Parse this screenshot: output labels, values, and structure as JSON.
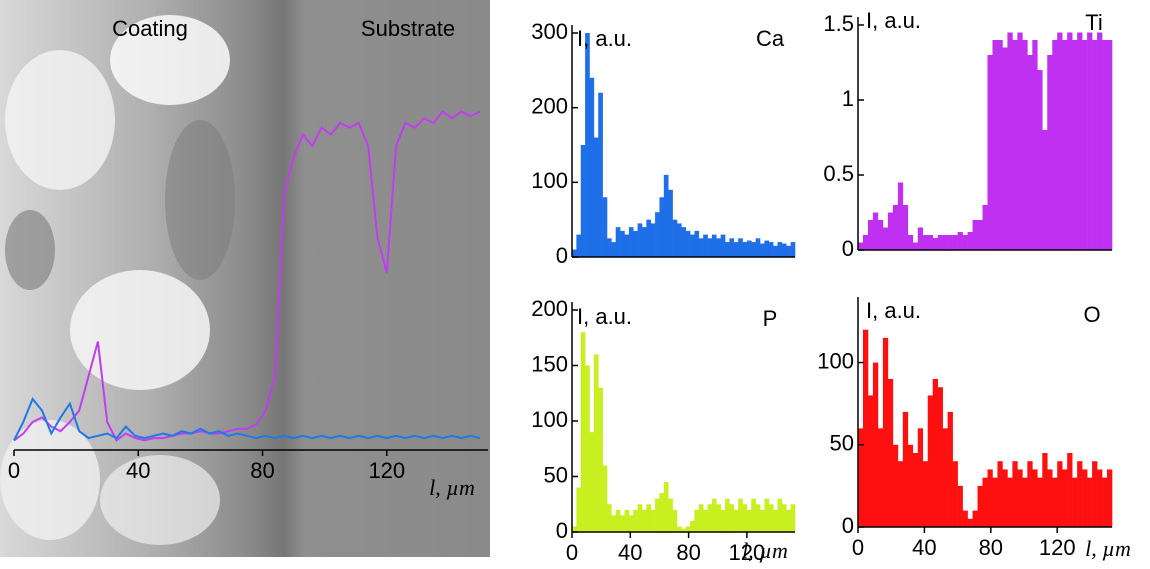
{
  "chart_data": [
    {
      "type": "line",
      "annotations": [
        "Coating",
        "Substrate"
      ],
      "xlabel": "l, µm",
      "x": [
        0,
        3,
        6,
        9,
        12,
        15,
        18,
        21,
        24,
        27,
        30,
        33,
        36,
        39,
        42,
        45,
        48,
        51,
        54,
        57,
        60,
        63,
        66,
        69,
        72,
        75,
        78,
        81,
        84,
        87,
        90,
        93,
        96,
        99,
        102,
        105,
        108,
        111,
        114,
        117,
        120,
        123,
        126,
        129,
        132,
        135,
        138,
        141,
        144,
        147,
        150
      ],
      "series": [
        {
          "color": "#c23cf2",
          "values": [
            0.02,
            0.05,
            0.1,
            0.12,
            0.08,
            0.06,
            0.1,
            0.15,
            0.3,
            0.45,
            0.1,
            0.02,
            0.05,
            0.03,
            0.02,
            0.03,
            0.03,
            0.04,
            0.05,
            0.05,
            0.06,
            0.05,
            0.05,
            0.06,
            0.07,
            0.07,
            0.09,
            0.15,
            0.3,
            1.1,
            1.25,
            1.35,
            1.3,
            1.38,
            1.35,
            1.4,
            1.38,
            1.4,
            1.3,
            0.9,
            0.75,
            1.3,
            1.4,
            1.38,
            1.42,
            1.4,
            1.45,
            1.42,
            1.45,
            1.43,
            1.45
          ]
        },
        {
          "color": "#1f78e8",
          "values": [
            0.02,
            0.1,
            0.2,
            0.15,
            0.05,
            0.12,
            0.18,
            0.06,
            0.03,
            0.04,
            0.05,
            0.03,
            0.08,
            0.04,
            0.03,
            0.04,
            0.05,
            0.04,
            0.06,
            0.05,
            0.07,
            0.05,
            0.06,
            0.04,
            0.05,
            0.04,
            0.03,
            0.04,
            0.03,
            0.04,
            0.03,
            0.04,
            0.03,
            0.04,
            0.03,
            0.04,
            0.03,
            0.04,
            0.03,
            0.04,
            0.03,
            0.04,
            0.03,
            0.04,
            0.03,
            0.04,
            0.03,
            0.04,
            0.03,
            0.04,
            0.03
          ]
        }
      ],
      "xlim": [
        0,
        150
      ],
      "ylim": [
        0,
        1.5
      ],
      "xticks": [
        0,
        40,
        80,
        120
      ]
    },
    {
      "type": "bar",
      "ylabel": "I, a.u.",
      "annotation": "Ca",
      "color": "#1f6fe8",
      "x": [
        0,
        3,
        6,
        9,
        12,
        15,
        18,
        21,
        24,
        27,
        30,
        33,
        36,
        39,
        42,
        45,
        48,
        51,
        54,
        57,
        60,
        63,
        66,
        69,
        72,
        75,
        78,
        81,
        84,
        87,
        90,
        93,
        96,
        99,
        102,
        105,
        108,
        111,
        114,
        117,
        120,
        123,
        126,
        129,
        132,
        135,
        138,
        141,
        144,
        147,
        150
      ],
      "values": [
        10,
        30,
        150,
        300,
        240,
        160,
        220,
        80,
        25,
        20,
        40,
        35,
        30,
        40,
        35,
        45,
        40,
        50,
        45,
        60,
        80,
        110,
        90,
        50,
        45,
        40,
        35,
        30,
        35,
        25,
        30,
        25,
        30,
        25,
        30,
        20,
        25,
        20,
        25,
        20,
        22,
        20,
        25,
        18,
        22,
        20,
        15,
        20,
        18,
        15,
        20
      ],
      "xlim": [
        0,
        153
      ],
      "ylim": [
        0,
        300
      ],
      "yticks": [
        0,
        100,
        200,
        300
      ]
    },
    {
      "type": "bar",
      "ylabel": "I, a.u.",
      "annotation": "Ti",
      "color": "#c030f0",
      "x": [
        0,
        3,
        6,
        9,
        12,
        15,
        18,
        21,
        24,
        27,
        30,
        33,
        36,
        39,
        42,
        45,
        48,
        51,
        54,
        57,
        60,
        63,
        66,
        69,
        72,
        75,
        78,
        81,
        84,
        87,
        90,
        93,
        96,
        99,
        102,
        105,
        108,
        111,
        114,
        117,
        120,
        123,
        126,
        129,
        132,
        135,
        138,
        141,
        144,
        147,
        150
      ],
      "values": [
        0.05,
        0.1,
        0.2,
        0.25,
        0.2,
        0.15,
        0.25,
        0.3,
        0.45,
        0.3,
        0.1,
        0.05,
        0.15,
        0.1,
        0.1,
        0.08,
        0.1,
        0.1,
        0.1,
        0.1,
        0.12,
        0.1,
        0.12,
        0.2,
        0.2,
        0.3,
        1.3,
        1.4,
        1.4,
        1.35,
        1.45,
        1.4,
        1.45,
        1.4,
        1.3,
        1.4,
        1.2,
        0.8,
        1.3,
        1.4,
        1.45,
        1.4,
        1.45,
        1.4,
        1.45,
        1.4,
        1.45,
        1.4,
        1.45,
        1.4,
        1.4
      ],
      "xlim": [
        0,
        153
      ],
      "ylim": [
        0,
        1.5
      ],
      "yticks": [
        0,
        0.5,
        1,
        1.5
      ]
    },
    {
      "type": "bar",
      "ylabel": "I, a.u.",
      "annotation": "P",
      "color": "#c8f020",
      "xlabel": "l, µm",
      "x": [
        0,
        3,
        6,
        9,
        12,
        15,
        18,
        21,
        24,
        27,
        30,
        33,
        36,
        39,
        42,
        45,
        48,
        51,
        54,
        57,
        60,
        63,
        66,
        69,
        72,
        75,
        78,
        81,
        84,
        87,
        90,
        93,
        96,
        99,
        102,
        105,
        108,
        111,
        114,
        117,
        120,
        123,
        126,
        129,
        132,
        135,
        138,
        141,
        144,
        147,
        150
      ],
      "values": [
        5,
        40,
        180,
        150,
        90,
        160,
        130,
        60,
        25,
        15,
        20,
        15,
        20,
        15,
        20,
        25,
        20,
        25,
        20,
        30,
        35,
        45,
        30,
        20,
        5,
        3,
        5,
        10,
        20,
        25,
        20,
        25,
        30,
        25,
        20,
        30,
        25,
        20,
        30,
        25,
        20,
        30,
        25,
        20,
        30,
        25,
        20,
        30,
        25,
        20,
        25
      ],
      "xlim": [
        0,
        153
      ],
      "ylim": [
        0,
        200
      ],
      "yticks": [
        0,
        50,
        100,
        150,
        200
      ],
      "xticks": [
        0,
        40,
        80,
        120
      ]
    },
    {
      "type": "bar",
      "ylabel": "I, a.u.",
      "annotation": "O",
      "color": "#ff1010",
      "xlabel": "l, µm",
      "x": [
        0,
        3,
        6,
        9,
        12,
        15,
        18,
        21,
        24,
        27,
        30,
        33,
        36,
        39,
        42,
        45,
        48,
        51,
        54,
        57,
        60,
        63,
        66,
        69,
        72,
        75,
        78,
        81,
        84,
        87,
        90,
        93,
        96,
        99,
        102,
        105,
        108,
        111,
        114,
        117,
        120,
        123,
        126,
        129,
        132,
        135,
        138,
        141,
        144,
        147,
        150
      ],
      "values": [
        60,
        120,
        80,
        100,
        60,
        115,
        90,
        50,
        40,
        70,
        50,
        45,
        60,
        40,
        80,
        90,
        85,
        60,
        70,
        40,
        25,
        10,
        5,
        10,
        25,
        30,
        35,
        30,
        40,
        35,
        30,
        40,
        35,
        30,
        40,
        35,
        30,
        45,
        35,
        30,
        40,
        35,
        45,
        30,
        40,
        35,
        30,
        40,
        35,
        30,
        35
      ],
      "xlim": [
        0,
        153
      ],
      "ylim": [
        0,
        135
      ],
      "yticks": [
        0,
        50,
        100
      ],
      "xticks": [
        0,
        40,
        80,
        120
      ]
    }
  ]
}
